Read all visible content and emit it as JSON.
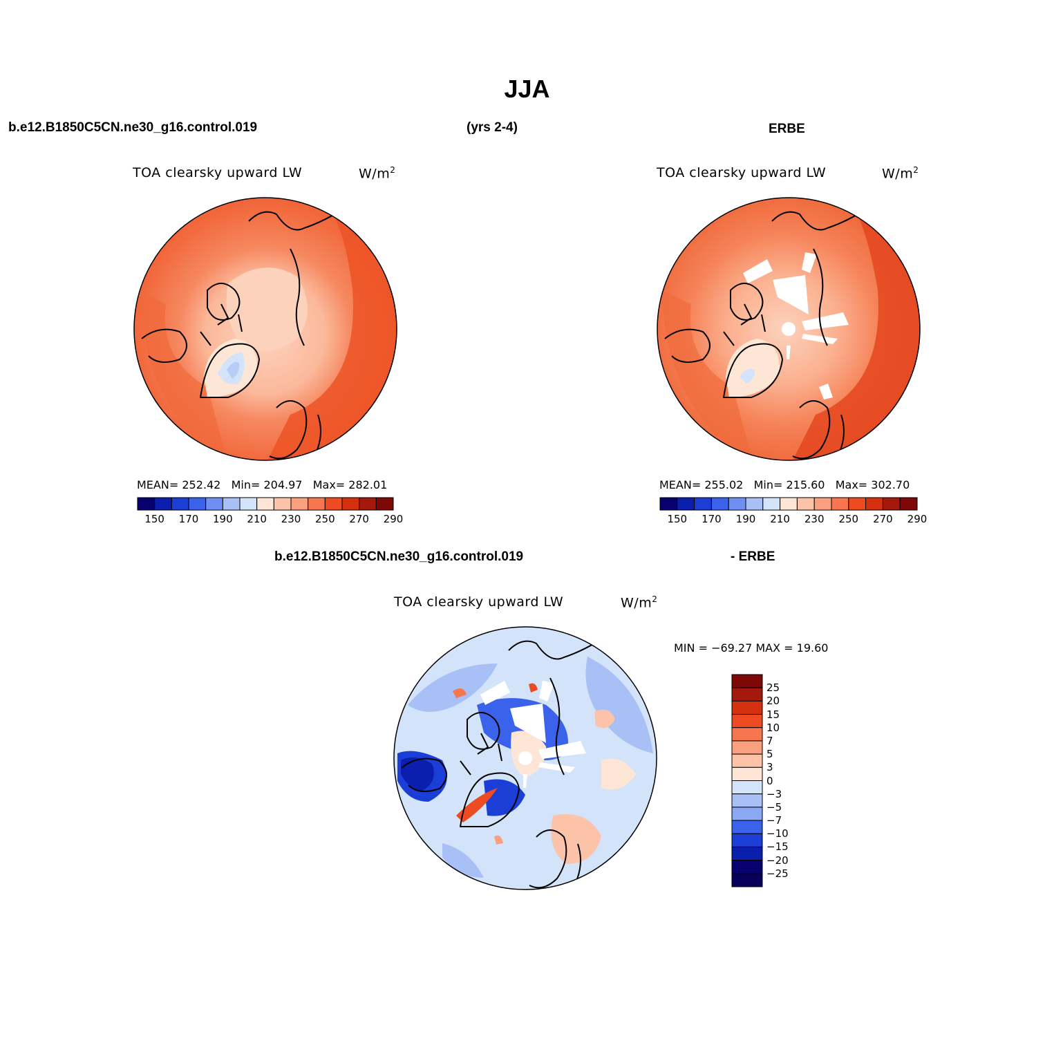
{
  "page": {
    "title": "JJA",
    "case_name": "b.e12.B1850C5CN.ne30_g16.control.019",
    "years": "(yrs 2-4)",
    "obs_name": "ERBE"
  },
  "panels": [
    {
      "id": "model",
      "variable": "TOA clearsky upward LW",
      "units_base": "W/m",
      "units_exp": "2",
      "stats": {
        "mean_label": "MEAN=",
        "mean": "252.42",
        "min_label": "Min=",
        "min": "204.97",
        "max_label": "Max=",
        "max": "282.01"
      }
    },
    {
      "id": "obs",
      "variable": "TOA clearsky upward LW",
      "units_base": "W/m",
      "units_exp": "2",
      "stats": {
        "mean_label": "MEAN=",
        "mean": "255.02",
        "min_label": "Min=",
        "min": "215.60",
        "max_label": "Max=",
        "max": "302.70"
      }
    }
  ],
  "diff_panel": {
    "header_left": "b.e12.B1850C5CN.ne30_g16.control.019",
    "header_right": "- ERBE",
    "variable": "TOA clearsky upward LW",
    "units_base": "W/m",
    "units_exp": "2",
    "minmax": "MIN = −69.27  MAX =  19.60"
  },
  "colorbar_abs": {
    "colors": [
      "#08006e",
      "#0a1fad",
      "#1a3ed6",
      "#3a62ea",
      "#6f90f2",
      "#a9c0f6",
      "#d3e4fa",
      "#fde6d5",
      "#fdc3a8",
      "#fba07e",
      "#f7754f",
      "#ee4b22",
      "#d5310f",
      "#a4190b",
      "#7d0806"
    ],
    "tick_labels": [
      "150",
      "170",
      "190",
      "210",
      "230",
      "250",
      "270",
      "290"
    ]
  },
  "colorbar_diff": {
    "colors": [
      "#7d0806",
      "#a4190b",
      "#d5310f",
      "#ee4b22",
      "#f7754f",
      "#fba07e",
      "#fdc3a8",
      "#fde6d5",
      "#d3e4fa",
      "#a9c0f6",
      "#8aa8f4",
      "#3a62ea",
      "#1a3ed6",
      "#0a1fad",
      "#08006e",
      "#06005a"
    ],
    "tick_labels": [
      "25",
      "20",
      "15",
      "10",
      "7",
      "5",
      "3",
      "0",
      "−3",
      "−5",
      "−7",
      "−10",
      "−15",
      "−20",
      "−25"
    ]
  }
}
